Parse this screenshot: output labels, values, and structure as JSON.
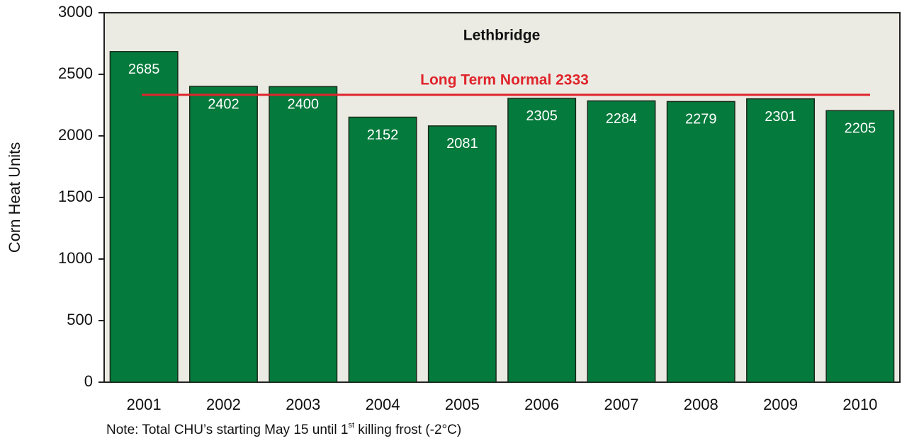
{
  "chart_data": {
    "type": "bar",
    "title": "Lethbridge",
    "y_label": "Corn Heat Units",
    "categories": [
      "2001",
      "2002",
      "2003",
      "2004",
      "2005",
      "2006",
      "2007",
      "2008",
      "2009",
      "2010"
    ],
    "values": [
      2685,
      2402,
      2400,
      2152,
      2081,
      2305,
      2284,
      2279,
      2301,
      2205
    ],
    "color": "#047a3c",
    "ylim": [
      0,
      3000
    ],
    "yticks": [
      0,
      500,
      1000,
      1500,
      2000,
      2500,
      3000
    ],
    "reference_line": {
      "value": 2333,
      "label": "Long Term Normal 2333",
      "color": "#e0242b"
    },
    "note": [
      "Note: Total CHU’s starting May 15 until 1",
      "st",
      " killing frost (-2°C)"
    ]
  }
}
